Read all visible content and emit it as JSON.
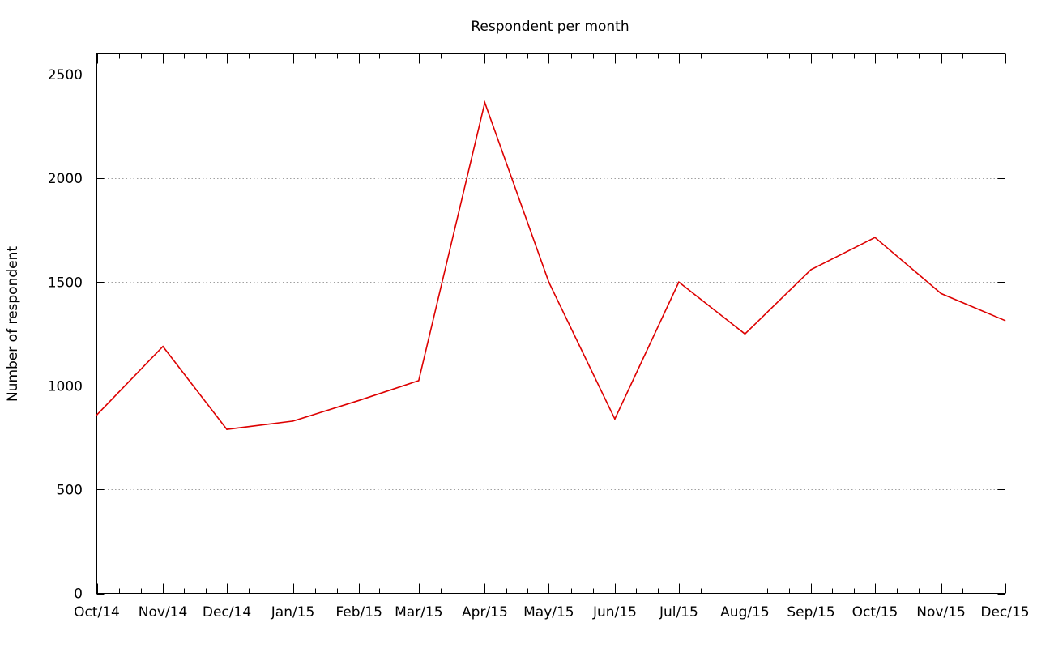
{
  "chart_data": {
    "type": "line",
    "title": "Respondent per month",
    "xlabel": "",
    "ylabel": "Number of respondent",
    "ylim": [
      0,
      2600
    ],
    "yticks": [
      0,
      500,
      1000,
      1500,
      2000,
      2500
    ],
    "grid": "horizontal dotted",
    "legend": "none",
    "x_ticks": [
      "Oct/14",
      "Nov/14",
      "Dec/14",
      "Jan/15",
      "Feb/15",
      "Mar/15",
      "Apr/15",
      "May/15",
      "Jun/15",
      "Jul/15",
      "Aug/15",
      "Sep/15",
      "Oct/15",
      "Nov/15",
      "Dec/15"
    ],
    "x_range": [
      "2014-10-01",
      "2015-12-01"
    ],
    "series": [
      {
        "color": "#dd0000",
        "points": [
          {
            "x": "2014-10-01",
            "y": 860
          },
          {
            "x": "2014-11-01",
            "y": 1190
          },
          {
            "x": "2014-12-01",
            "y": 790
          },
          {
            "x": "2015-01-01",
            "y": 830
          },
          {
            "x": "2015-02-01",
            "y": 930
          },
          {
            "x": "2015-03-01",
            "y": 1025
          },
          {
            "x": "2015-04-01",
            "y": 2365
          },
          {
            "x": "2015-05-01",
            "y": 1500
          },
          {
            "x": "2015-06-01",
            "y": 840
          },
          {
            "x": "2015-07-01",
            "y": 1500
          },
          {
            "x": "2015-08-01",
            "y": 1250
          },
          {
            "x": "2015-09-01",
            "y": 1560
          },
          {
            "x": "2015-10-01",
            "y": 1715
          },
          {
            "x": "2015-11-01",
            "y": 1445
          },
          {
            "x": "2015-12-01",
            "y": 1315
          }
        ]
      }
    ]
  }
}
